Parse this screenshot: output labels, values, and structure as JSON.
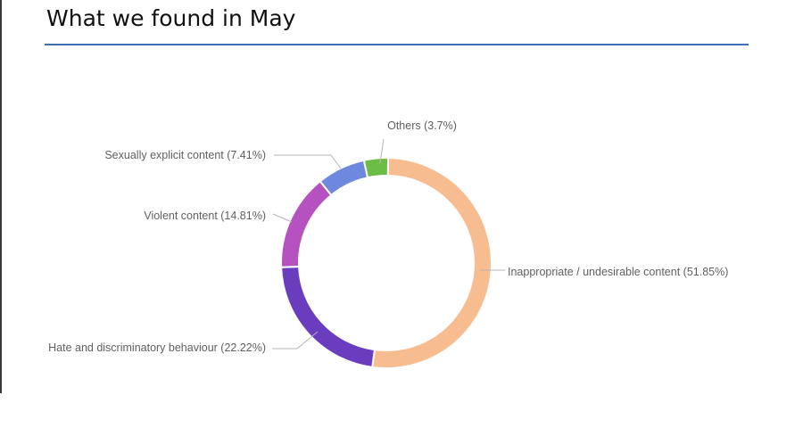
{
  "page": {
    "title": "What we found in May"
  },
  "chart_data": {
    "type": "pie",
    "donut": true,
    "title": "",
    "slices": [
      {
        "label": "Inappropriate / undesirable content (51.85%)",
        "value": 51.85,
        "color": "#f8bc91"
      },
      {
        "label": "Hate and discriminatory behaviour (22.22%)",
        "value": 22.22,
        "color": "#6a3dbf"
      },
      {
        "label": "Violent content (14.81%)",
        "value": 14.81,
        "color": "#b552bf"
      },
      {
        "label": "Sexually explicit content (7.41%)",
        "value": 7.41,
        "color": "#6e88de"
      },
      {
        "label": "Others (3.7%)",
        "value": 3.7,
        "color": "#6cbd45"
      }
    ],
    "colors": {
      "leader_line": "#b5b5b5",
      "label_text": "#5f6063",
      "title_rule": "#3f6eb3"
    }
  }
}
